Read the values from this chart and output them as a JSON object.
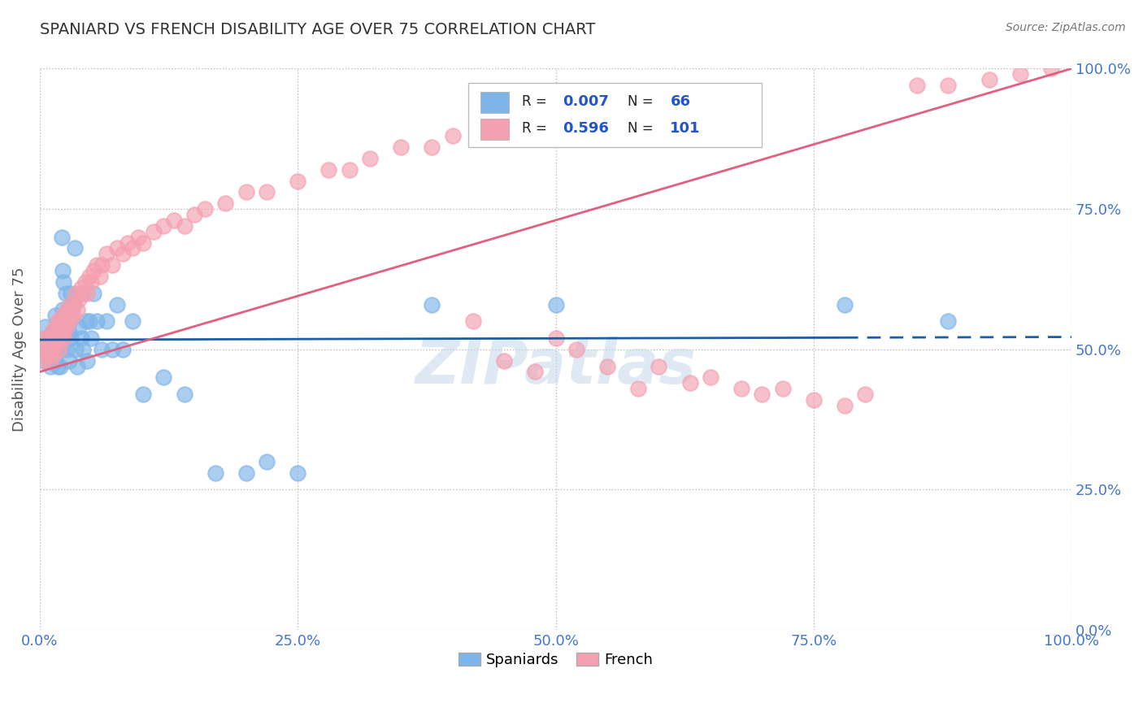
{
  "title": "SPANIARD VS FRENCH DISABILITY AGE OVER 75 CORRELATION CHART",
  "source": "Source: ZipAtlas.com",
  "ylabel": "Disability Age Over 75",
  "xlim": [
    0.0,
    1.0
  ],
  "ylim": [
    0.0,
    1.0
  ],
  "xticks": [
    0.0,
    0.25,
    0.5,
    0.75,
    1.0
  ],
  "yticks": [
    0.0,
    0.25,
    0.5,
    0.75,
    1.0
  ],
  "xticklabels": [
    "0.0%",
    "25.0%",
    "50.0%",
    "75.0%",
    "100.0%"
  ],
  "yticklabels_right": [
    "0.0%",
    "25.0%",
    "50.0%",
    "75.0%",
    "100.0%"
  ],
  "spaniards_color": "#7EB5E8",
  "french_color": "#F4A0B0",
  "spaniards_line_color": "#1A5EA8",
  "french_line_color": "#E06080",
  "spaniards_R": 0.007,
  "spaniards_N": 66,
  "french_R": 0.596,
  "french_N": 101,
  "legend_val_color": "#2255CC",
  "watermark": "ZIPatlas",
  "background_color": "#ffffff",
  "grid_color": "#bbbbbb",
  "title_color": "#333333",
  "spaniards_scatter_x": [
    0.005,
    0.005,
    0.005,
    0.007,
    0.008,
    0.01,
    0.01,
    0.01,
    0.012,
    0.013,
    0.015,
    0.015,
    0.015,
    0.016,
    0.017,
    0.018,
    0.019,
    0.02,
    0.02,
    0.02,
    0.021,
    0.022,
    0.022,
    0.023,
    0.023,
    0.024,
    0.025,
    0.025,
    0.026,
    0.027,
    0.028,
    0.028,
    0.029,
    0.03,
    0.03,
    0.032,
    0.034,
    0.035,
    0.036,
    0.038,
    0.04,
    0.04,
    0.042,
    0.045,
    0.046,
    0.048,
    0.05,
    0.052,
    0.055,
    0.06,
    0.065,
    0.07,
    0.075,
    0.08,
    0.09,
    0.1,
    0.12,
    0.14,
    0.17,
    0.2,
    0.38,
    0.5,
    0.78,
    0.88,
    0.22,
    0.25
  ],
  "spaniards_scatter_y": [
    0.54,
    0.5,
    0.48,
    0.52,
    0.49,
    0.51,
    0.49,
    0.47,
    0.53,
    0.5,
    0.56,
    0.52,
    0.48,
    0.5,
    0.47,
    0.54,
    0.51,
    0.55,
    0.5,
    0.47,
    0.7,
    0.64,
    0.57,
    0.62,
    0.55,
    0.52,
    0.6,
    0.53,
    0.5,
    0.57,
    0.53,
    0.48,
    0.55,
    0.6,
    0.52,
    0.58,
    0.68,
    0.5,
    0.47,
    0.54,
    0.6,
    0.52,
    0.5,
    0.55,
    0.48,
    0.55,
    0.52,
    0.6,
    0.55,
    0.5,
    0.55,
    0.5,
    0.58,
    0.5,
    0.55,
    0.42,
    0.45,
    0.42,
    0.28,
    0.28,
    0.58,
    0.58,
    0.58,
    0.55,
    0.3,
    0.28
  ],
  "french_scatter_x": [
    0.003,
    0.004,
    0.005,
    0.005,
    0.006,
    0.007,
    0.008,
    0.008,
    0.009,
    0.01,
    0.01,
    0.01,
    0.011,
    0.012,
    0.012,
    0.013,
    0.013,
    0.014,
    0.015,
    0.015,
    0.016,
    0.017,
    0.017,
    0.018,
    0.019,
    0.019,
    0.02,
    0.02,
    0.021,
    0.022,
    0.022,
    0.023,
    0.024,
    0.024,
    0.025,
    0.026,
    0.027,
    0.028,
    0.029,
    0.03,
    0.031,
    0.032,
    0.033,
    0.035,
    0.036,
    0.038,
    0.04,
    0.042,
    0.044,
    0.046,
    0.048,
    0.05,
    0.052,
    0.055,
    0.058,
    0.06,
    0.065,
    0.07,
    0.075,
    0.08,
    0.085,
    0.09,
    0.095,
    0.1,
    0.11,
    0.12,
    0.13,
    0.14,
    0.15,
    0.16,
    0.18,
    0.2,
    0.22,
    0.25,
    0.28,
    0.3,
    0.32,
    0.35,
    0.38,
    0.4,
    0.42,
    0.45,
    0.48,
    0.5,
    0.52,
    0.55,
    0.58,
    0.6,
    0.63,
    0.65,
    0.68,
    0.7,
    0.72,
    0.75,
    0.78,
    0.8,
    0.85,
    0.88,
    0.92,
    0.95,
    0.98
  ],
  "french_scatter_y": [
    0.48,
    0.5,
    0.49,
    0.52,
    0.51,
    0.5,
    0.49,
    0.52,
    0.51,
    0.5,
    0.52,
    0.48,
    0.51,
    0.5,
    0.53,
    0.52,
    0.49,
    0.51,
    0.52,
    0.54,
    0.53,
    0.51,
    0.55,
    0.52,
    0.53,
    0.5,
    0.55,
    0.52,
    0.54,
    0.53,
    0.56,
    0.54,
    0.55,
    0.52,
    0.56,
    0.54,
    0.57,
    0.55,
    0.58,
    0.56,
    0.57,
    0.56,
    0.58,
    0.6,
    0.57,
    0.59,
    0.61,
    0.6,
    0.62,
    0.6,
    0.63,
    0.62,
    0.64,
    0.65,
    0.63,
    0.65,
    0.67,
    0.65,
    0.68,
    0.67,
    0.69,
    0.68,
    0.7,
    0.69,
    0.71,
    0.72,
    0.73,
    0.72,
    0.74,
    0.75,
    0.76,
    0.78,
    0.78,
    0.8,
    0.82,
    0.82,
    0.84,
    0.86,
    0.86,
    0.88,
    0.55,
    0.48,
    0.46,
    0.52,
    0.5,
    0.47,
    0.43,
    0.47,
    0.44,
    0.45,
    0.43,
    0.42,
    0.43,
    0.41,
    0.4,
    0.42,
    0.97,
    0.97,
    0.98,
    0.99,
    1.0
  ]
}
